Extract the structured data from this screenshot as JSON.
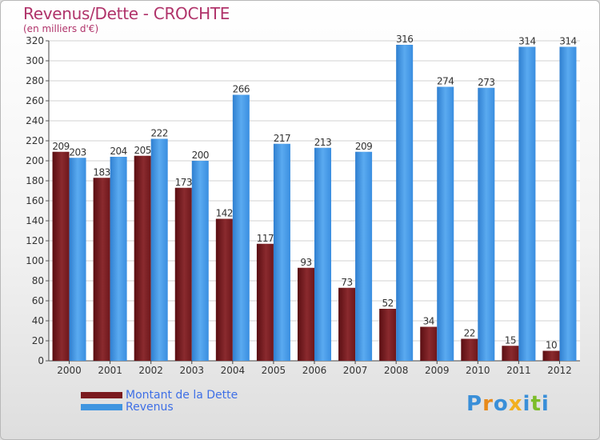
{
  "chart_data": {
    "type": "bar",
    "title": "Revenus/Dette - CROCHTE",
    "subtitle": "(en milliers d'€)",
    "categories": [
      "2000",
      "2001",
      "2002",
      "2003",
      "2004",
      "2005",
      "2006",
      "2007",
      "2008",
      "2009",
      "2010",
      "2011",
      "2012"
    ],
    "series": [
      {
        "name": "Montant de la Dette",
        "color": "#7a1a1f",
        "values": [
          209,
          183,
          205,
          173,
          142,
          117,
          93,
          73,
          52,
          34,
          22,
          15,
          10
        ]
      },
      {
        "name": "Revenus",
        "color": "#3f95e0",
        "values": [
          203,
          204,
          222,
          200,
          266,
          217,
          213,
          209,
          316,
          274,
          273,
          314,
          314
        ]
      }
    ],
    "ylim": [
      0,
      320
    ],
    "ytick_step": 20,
    "grid": true,
    "legend_position": "bottom-left"
  },
  "logo": {
    "text": "Proxiti",
    "letters": [
      {
        "ch": "P",
        "color": "#3a8fd8"
      },
      {
        "ch": "r",
        "color": "#e88a1a"
      },
      {
        "ch": "o",
        "color": "#3a8fd8"
      },
      {
        "ch": "x",
        "color": "#f2b01e"
      },
      {
        "ch": "i",
        "color": "#3a8fd8"
      },
      {
        "ch": "t",
        "color": "#7cbd2a"
      },
      {
        "ch": "i",
        "color": "#3a8fd8"
      }
    ]
  }
}
